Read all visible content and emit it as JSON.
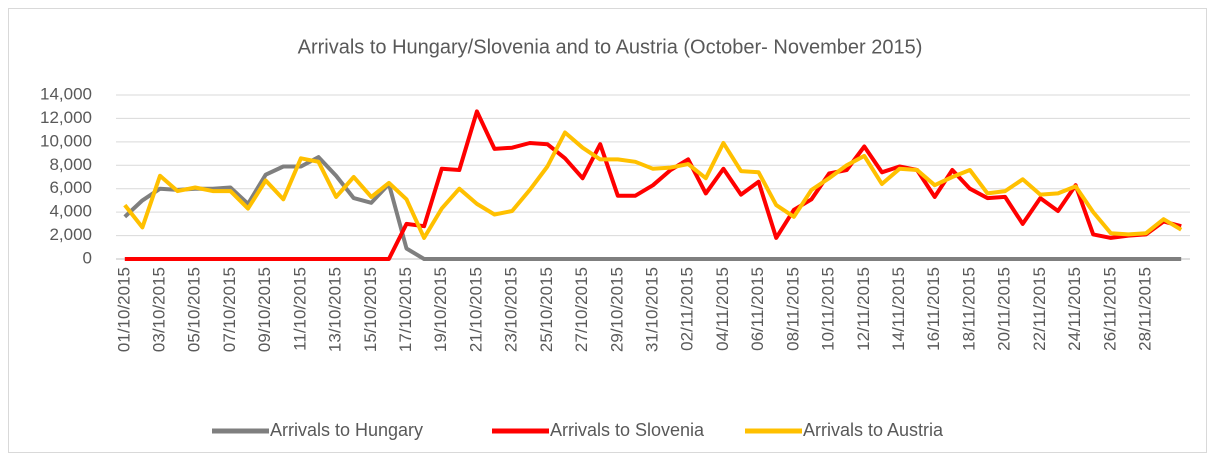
{
  "chart_data": {
    "type": "line",
    "title": "Arrivals to Hungary/Slovenia and to Austria (October- November 2015)",
    "categories": [
      "01/10/2015",
      null,
      "03/10/2015",
      null,
      "05/10/2015",
      null,
      "07/10/2015",
      null,
      "09/10/2015",
      null,
      "11/10/2015",
      null,
      "13/10/2015",
      null,
      "15/10/2015",
      null,
      "17/10/2015",
      null,
      "19/10/2015",
      null,
      "21/10/2015",
      null,
      "23/10/2015",
      null,
      "25/10/2015",
      null,
      "27/10/2015",
      null,
      "29/10/2015",
      null,
      "31/10/2015",
      null,
      "02/11/2015",
      null,
      "04/11/2015",
      null,
      "06/11/2015",
      null,
      "08/11/2015",
      null,
      "10/11/2015",
      null,
      "12/11/2015",
      null,
      "14/11/2015",
      null,
      "16/11/2015",
      null,
      "18/11/2015",
      null,
      "20/11/2015",
      null,
      "22/11/2015",
      null,
      "24/11/2015",
      null,
      "26/11/2015",
      null,
      "28/11/2015",
      null,
      null
    ],
    "series": [
      {
        "name": "Arrivals to Hungary",
        "color": "#7f7f7f",
        "values": [
          3600,
          5000,
          6000,
          5900,
          6000,
          6000,
          6100,
          4700,
          7200,
          7900,
          7900,
          8700,
          7100,
          5200,
          4800,
          6400,
          900,
          0,
          0,
          0,
          0,
          0,
          0,
          0,
          0,
          0,
          0,
          0,
          0,
          0,
          0,
          0,
          0,
          0,
          0,
          0,
          0,
          0,
          0,
          0,
          0,
          0,
          0,
          0,
          0,
          0,
          0,
          0,
          0,
          0,
          0,
          0,
          0,
          0,
          0,
          0,
          0,
          0,
          0,
          0,
          0
        ]
      },
      {
        "name": "Arrivals to Slovenia",
        "color": "#ff0000",
        "values": [
          0,
          0,
          0,
          0,
          0,
          0,
          0,
          0,
          0,
          0,
          0,
          0,
          0,
          0,
          0,
          0,
          3000,
          2800,
          7700,
          7600,
          12600,
          9400,
          9500,
          9900,
          9800,
          8600,
          6900,
          9800,
          5400,
          5400,
          6300,
          7600,
          8500,
          5600,
          7700,
          5500,
          6600,
          1800,
          4200,
          5100,
          7300,
          7600,
          9600,
          7400,
          7900,
          7600,
          5300,
          7600,
          6000,
          5200,
          5300,
          3000,
          5200,
          4100,
          6300,
          2100,
          1800,
          2000,
          2100,
          3200,
          2800
        ]
      },
      {
        "name": "Arrivals to Austria",
        "color": "#ffc000",
        "values": [
          4600,
          2700,
          7100,
          5800,
          6100,
          5800,
          5800,
          4300,
          6700,
          5100,
          8600,
          8300,
          5300,
          7000,
          5300,
          6500,
          5100,
          1800,
          4300,
          6000,
          4700,
          3800,
          4100,
          5900,
          7900,
          10800,
          9500,
          8500,
          8500,
          8300,
          7700,
          7800,
          8100,
          6900,
          9900,
          7500,
          7400,
          4600,
          3600,
          5900,
          6900,
          8000,
          8800,
          6400,
          7700,
          7600,
          6300,
          7000,
          7600,
          5600,
          5800,
          6800,
          5500,
          5600,
          6200,
          4000,
          2200,
          2100,
          2200,
          3400,
          2500
        ]
      }
    ],
    "ylim": [
      0,
      14000
    ],
    "yticks": [
      0,
      {
        "value": 2000,
        "label": "2,000"
      },
      {
        "value": 4000,
        "label": "4,000"
      },
      {
        "value": 6000,
        "label": "6,000"
      },
      {
        "value": 8000,
        "label": "8,000"
      },
      {
        "value": 10000,
        "label": "10,000"
      },
      {
        "value": 12000,
        "label": "12,000"
      },
      {
        "value": 14000,
        "label": "14,000"
      }
    ],
    "grid": true,
    "legend": "bottom"
  }
}
